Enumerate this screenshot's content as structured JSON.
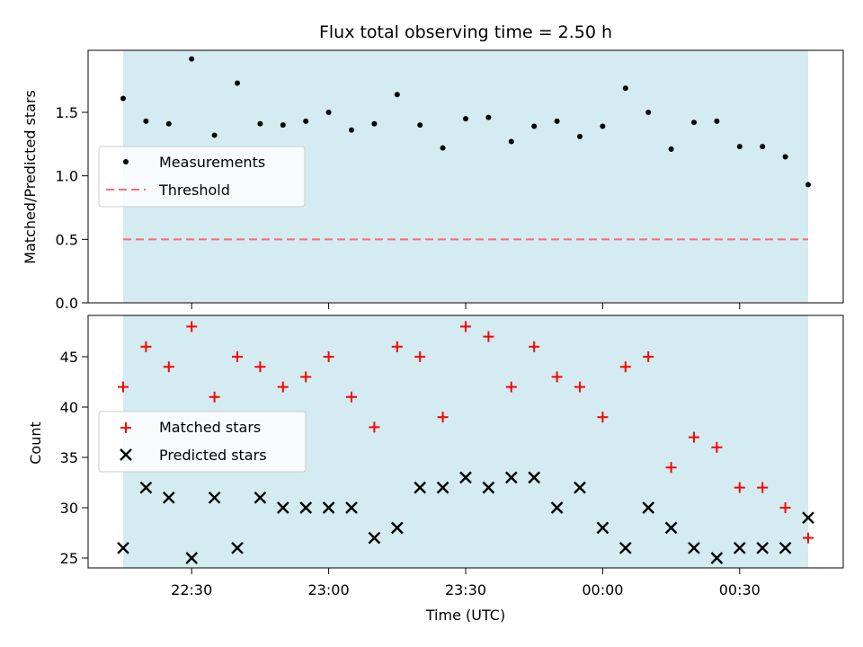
{
  "chart_data": [
    {
      "type": "scatter",
      "title": "Flux total observing time = 2.50 h",
      "ylabel": "Matched/Predicted stars",
      "ylim": [
        0,
        2.0
      ],
      "yticks": [
        0.0,
        0.5,
        1.0,
        1.5
      ],
      "ytick_labels": [
        "0.0",
        "0.5",
        "1.0",
        "1.5"
      ],
      "x": [
        "22:15",
        "22:20",
        "22:25",
        "22:30",
        "22:35",
        "22:40",
        "22:45",
        "22:50",
        "22:55",
        "23:00",
        "23:05",
        "23:10",
        "23:15",
        "23:20",
        "23:25",
        "23:30",
        "23:35",
        "23:40",
        "23:45",
        "23:50",
        "23:55",
        "00:00",
        "00:05",
        "00:10",
        "00:15",
        "00:20",
        "00:25",
        "00:30",
        "00:35",
        "00:40",
        "00:45"
      ],
      "series": [
        {
          "name": "Measurements",
          "color": "#000000",
          "marker": "dot",
          "values": [
            1.61,
            1.43,
            1.41,
            1.92,
            1.32,
            1.73,
            1.41,
            1.4,
            1.43,
            1.5,
            1.36,
            1.41,
            1.64,
            1.4,
            1.22,
            1.45,
            1.46,
            1.27,
            1.39,
            1.43,
            1.31,
            1.39,
            1.69,
            1.5,
            1.21,
            1.42,
            1.43,
            1.23,
            1.23,
            1.15,
            0.93
          ]
        },
        {
          "name": "Threshold",
          "color": "#ff6b6b",
          "style": "dashed",
          "value": 0.5
        }
      ],
      "observing_window": [
        "22:15",
        "00:45"
      ],
      "window_color": "#d4ebf1",
      "legend": "center-left"
    },
    {
      "type": "scatter",
      "ylabel": "Count",
      "xlabel": "Time (UTC)",
      "ylim": [
        24,
        49
      ],
      "yticks": [
        25,
        30,
        35,
        40,
        45
      ],
      "ytick_labels": [
        "25",
        "30",
        "35",
        "40",
        "45"
      ],
      "xticks": [
        "22:30",
        "23:00",
        "23:30",
        "00:00",
        "00:30"
      ],
      "x": [
        "22:15",
        "22:20",
        "22:25",
        "22:30",
        "22:35",
        "22:40",
        "22:45",
        "22:50",
        "22:55",
        "23:00",
        "23:05",
        "23:10",
        "23:15",
        "23:20",
        "23:25",
        "23:30",
        "23:35",
        "23:40",
        "23:45",
        "23:50",
        "23:55",
        "00:00",
        "00:05",
        "00:10",
        "00:15",
        "00:20",
        "00:25",
        "00:30",
        "00:35",
        "00:40",
        "00:45"
      ],
      "series": [
        {
          "name": "Matched stars",
          "color": "#ff0000",
          "marker": "plus",
          "values": [
            42,
            46,
            44,
            48,
            41,
            45,
            44,
            42,
            43,
            45,
            41,
            38,
            46,
            45,
            39,
            48,
            47,
            42,
            46,
            43,
            42,
            39,
            44,
            45,
            34,
            37,
            36,
            32,
            32,
            30,
            27
          ]
        },
        {
          "name": "Predicted stars",
          "color": "#000000",
          "marker": "x",
          "values": [
            26,
            32,
            31,
            25,
            31,
            26,
            31,
            30,
            30,
            30,
            30,
            27,
            28,
            32,
            32,
            33,
            32,
            33,
            33,
            30,
            32,
            28,
            26,
            30,
            28,
            26,
            25,
            26,
            26,
            26,
            29
          ]
        }
      ],
      "observing_window": [
        "22:15",
        "00:45"
      ],
      "window_color": "#d4ebf1",
      "legend": "center-left"
    }
  ]
}
